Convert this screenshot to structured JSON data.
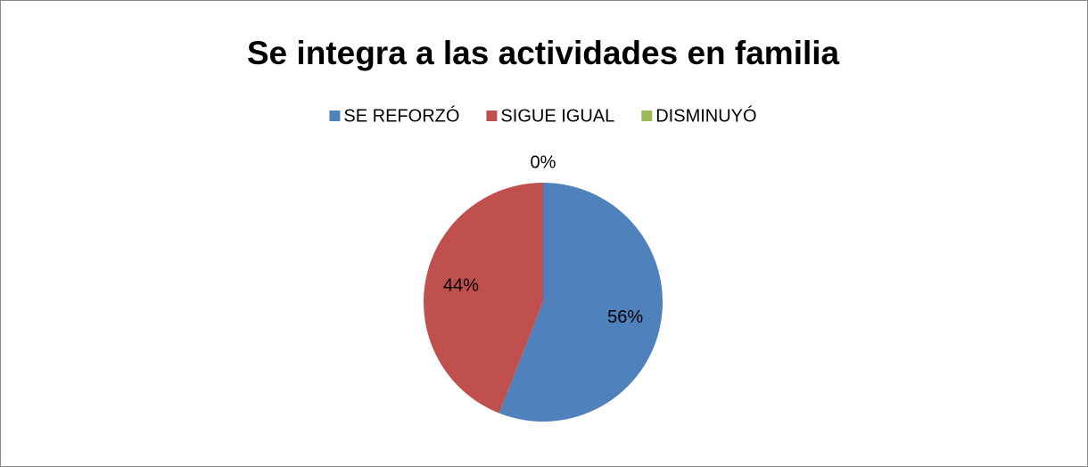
{
  "chart_data": {
    "type": "pie",
    "title": "Se integra a las actividades en familia",
    "categories": [
      "SE REFORZÓ",
      "SIGUE IGUAL",
      "DISMINUYÓ"
    ],
    "values": [
      56,
      44,
      0
    ],
    "value_labels": [
      "56%",
      "44%",
      "0%"
    ],
    "colors": [
      "#4f81bd",
      "#c0504d",
      "#9bbb59"
    ],
    "legend": "top"
  }
}
